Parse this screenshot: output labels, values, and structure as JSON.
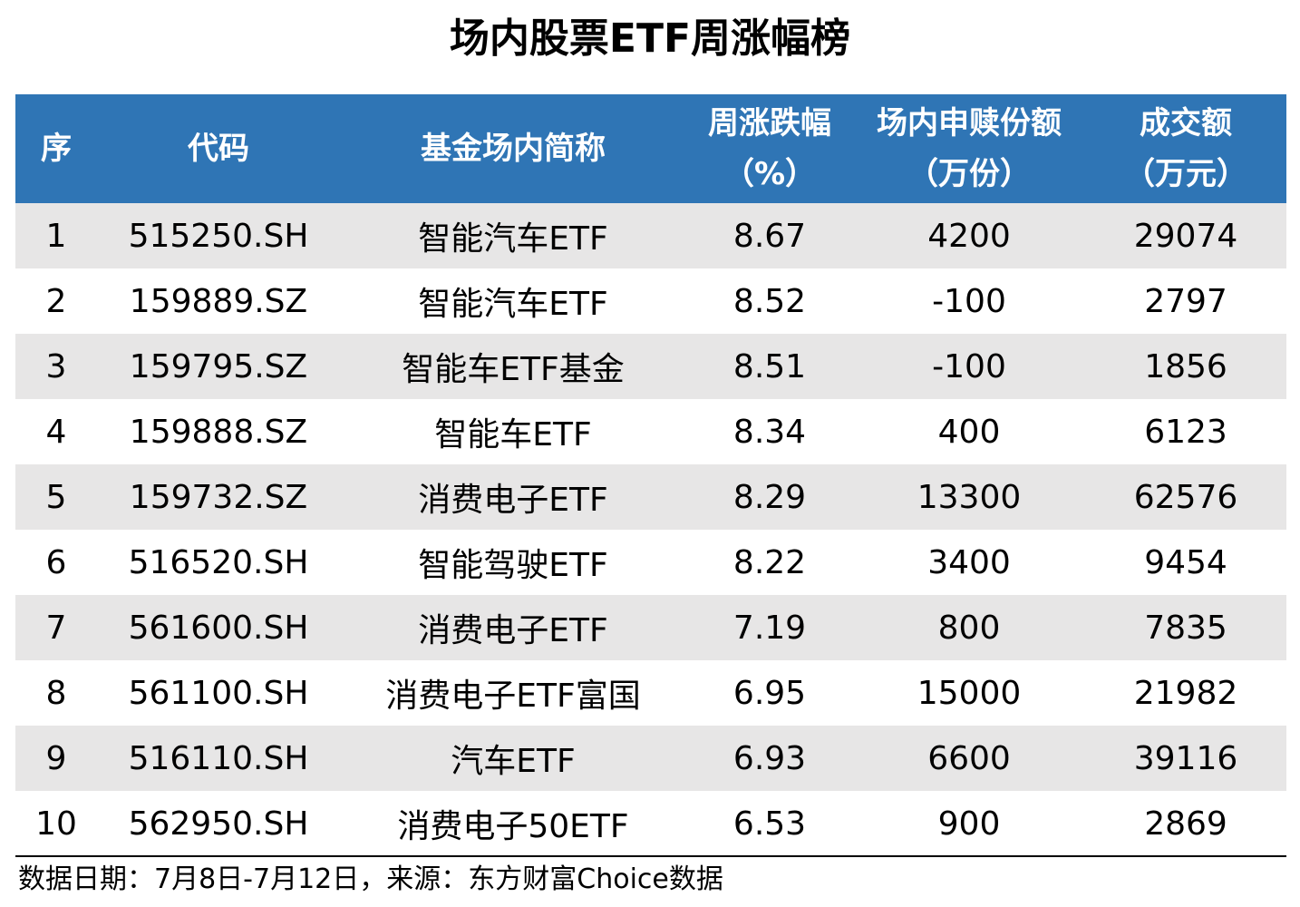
{
  "title": "场内股票ETF周涨幅榜",
  "table": {
    "headers": {
      "rank": "序",
      "code": "代码",
      "name": "基金场内简称",
      "change_line1": "周涨跌幅",
      "change_line2": "（%）",
      "units_line1": "场内申赎份额",
      "units_line2": "（万份）",
      "amount_line1": "成交额",
      "amount_line2": "（万元）"
    },
    "rows": [
      {
        "rank": "1",
        "code": "515250.SH",
        "name": "智能汽车ETF",
        "change": "8.67",
        "units": "4200",
        "amount": "29074"
      },
      {
        "rank": "2",
        "code": "159889.SZ",
        "name": "智能汽车ETF",
        "change": "8.52",
        "units": "-100",
        "amount": "2797"
      },
      {
        "rank": "3",
        "code": "159795.SZ",
        "name": "智能车ETF基金",
        "change": "8.51",
        "units": "-100",
        "amount": "1856"
      },
      {
        "rank": "4",
        "code": "159888.SZ",
        "name": "智能车ETF",
        "change": "8.34",
        "units": "400",
        "amount": "6123"
      },
      {
        "rank": "5",
        "code": "159732.SZ",
        "name": "消费电子ETF",
        "change": "8.29",
        "units": "13300",
        "amount": "62576"
      },
      {
        "rank": "6",
        "code": "516520.SH",
        "name": "智能驾驶ETF",
        "change": "8.22",
        "units": "3400",
        "amount": "9454"
      },
      {
        "rank": "7",
        "code": "561600.SH",
        "name": "消费电子ETF",
        "change": "7.19",
        "units": "800",
        "amount": "7835"
      },
      {
        "rank": "8",
        "code": "561100.SH",
        "name": "消费电子ETF富国",
        "change": "6.95",
        "units": "15000",
        "amount": "21982"
      },
      {
        "rank": "9",
        "code": "516110.SH",
        "name": "汽车ETF",
        "change": "6.93",
        "units": "6600",
        "amount": "39116"
      },
      {
        "rank": "10",
        "code": "562950.SH",
        "name": "消费电子50ETF",
        "change": "6.53",
        "units": "900",
        "amount": "2869"
      }
    ]
  },
  "footnote": "数据日期：7月8日-7月12日，来源：东方财富Choice数据",
  "colors": {
    "header_bg": "#2f75b5",
    "header_text": "#ffffff",
    "row_shade": "#e7e6e6",
    "row_plain": "#ffffff"
  }
}
